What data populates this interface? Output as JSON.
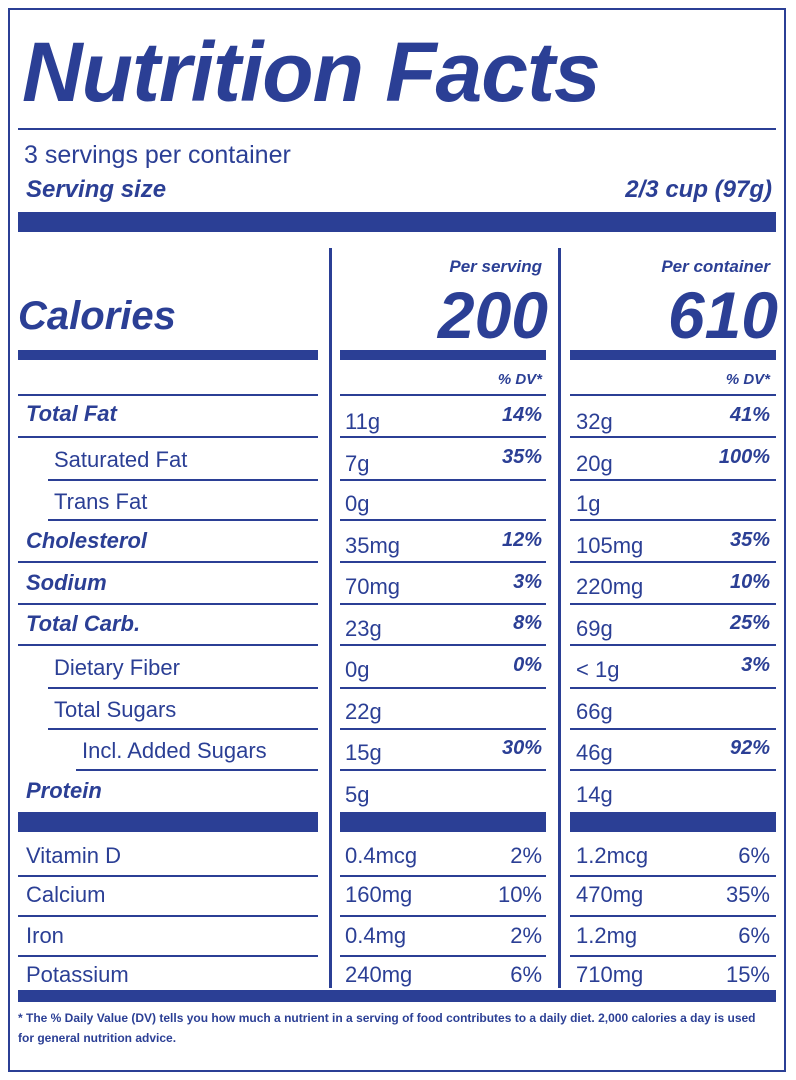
{
  "title": "Nutrition Facts",
  "servings_per_container": "3 servings per container",
  "serving_size_label": "Serving size",
  "serving_size_value": "2/3 cup (97g)",
  "calories_label": "Calories",
  "per_serving_label": "Per serving",
  "per_container_label": "Per container",
  "calories_per_serving": "200",
  "calories_per_container": "610",
  "dv_header": "% DV*",
  "nutrients": [
    {
      "name": "Total Fat",
      "serving_amount": "11g",
      "serving_dv": "14%",
      "container_amount": "32g",
      "container_dv": "41%"
    },
    {
      "name": "Saturated Fat",
      "serving_amount": "7g",
      "serving_dv": "35%",
      "container_amount": "20g",
      "container_dv": "100%"
    },
    {
      "name": "Trans Fat",
      "serving_amount": "0g",
      "serving_dv": "",
      "container_amount": "1g",
      "container_dv": ""
    },
    {
      "name": "Cholesterol",
      "serving_amount": "35mg",
      "serving_dv": "12%",
      "container_amount": "105mg",
      "container_dv": "35%"
    },
    {
      "name": "Sodium",
      "serving_amount": "70mg",
      "serving_dv": "3%",
      "container_amount": "220mg",
      "container_dv": "10%"
    },
    {
      "name": "Total Carb.",
      "serving_amount": "23g",
      "serving_dv": "8%",
      "container_amount": "69g",
      "container_dv": "25%"
    },
    {
      "name": "Dietary Fiber",
      "serving_amount": "0g",
      "serving_dv": "0%",
      "container_amount": "< 1g",
      "container_dv": "3%"
    },
    {
      "name": "Total Sugars",
      "serving_amount": "22g",
      "serving_dv": "",
      "container_amount": "66g",
      "container_dv": ""
    },
    {
      "name": "Incl. Added Sugars",
      "serving_amount": "15g",
      "serving_dv": "30%",
      "container_amount": "46g",
      "container_dv": "92%"
    },
    {
      "name": "Protein",
      "serving_amount": "5g",
      "serving_dv": "",
      "container_amount": "14g",
      "container_dv": ""
    }
  ],
  "vitamins": [
    {
      "name": "Vitamin D",
      "serving_amount": "0.4mcg",
      "serving_dv": "2%",
      "container_amount": "1.2mcg",
      "container_dv": "6%"
    },
    {
      "name": "Calcium",
      "serving_amount": "160mg",
      "serving_dv": "10%",
      "container_amount": "470mg",
      "container_dv": "35%"
    },
    {
      "name": "Iron",
      "serving_amount": "0.4mg",
      "serving_dv": "2%",
      "container_amount": "1.2mg",
      "container_dv": "6%"
    },
    {
      "name": "Potassium",
      "serving_amount": "240mg",
      "serving_dv": "6%",
      "container_amount": "710mg",
      "container_dv": "15%"
    }
  ],
  "footnote": "* The % Daily Value (DV) tells you how much a nutrient in a serving of food contributes to a daily diet. 2,000 calories a day is used for general nutrition advice."
}
